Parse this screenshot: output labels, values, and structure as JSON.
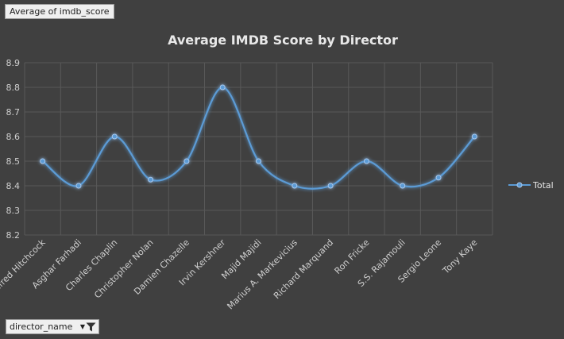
{
  "field_button": {
    "label": "Average of imdb_score"
  },
  "filter_button": {
    "label": "director_name",
    "icon": "filter-icon"
  },
  "colors": {
    "background": "#404040",
    "series": "#5b9bd5",
    "grid": "#595959"
  },
  "chart_data": {
    "type": "line",
    "title": "Average IMDB Score by Director",
    "xlabel": "",
    "ylabel": "",
    "categories": [
      "Alfred Hitchcock",
      "Asghar Farhadi",
      "Charles Chaplin",
      "Christopher Nolan",
      "Damien Chazelle",
      "Irvin Kershner",
      "Majid Majidi",
      "Marius A. Markevicius",
      "Richard Marquand",
      "Ron Fricke",
      "S.S. Rajamouli",
      "Sergio Leone",
      "Tony Kaye"
    ],
    "series": [
      {
        "name": "Total",
        "values": [
          8.5,
          8.4,
          8.6,
          8.425,
          8.5,
          8.8,
          8.5,
          8.4,
          8.4,
          8.5,
          8.4,
          8.433,
          8.6
        ]
      }
    ],
    "ylim": [
      8.2,
      8.9
    ],
    "yticks": [
      "8.2",
      "8.3",
      "8.4",
      "8.5",
      "8.6",
      "8.7",
      "8.8",
      "8.9"
    ],
    "grid": true,
    "legend_position": "right"
  }
}
